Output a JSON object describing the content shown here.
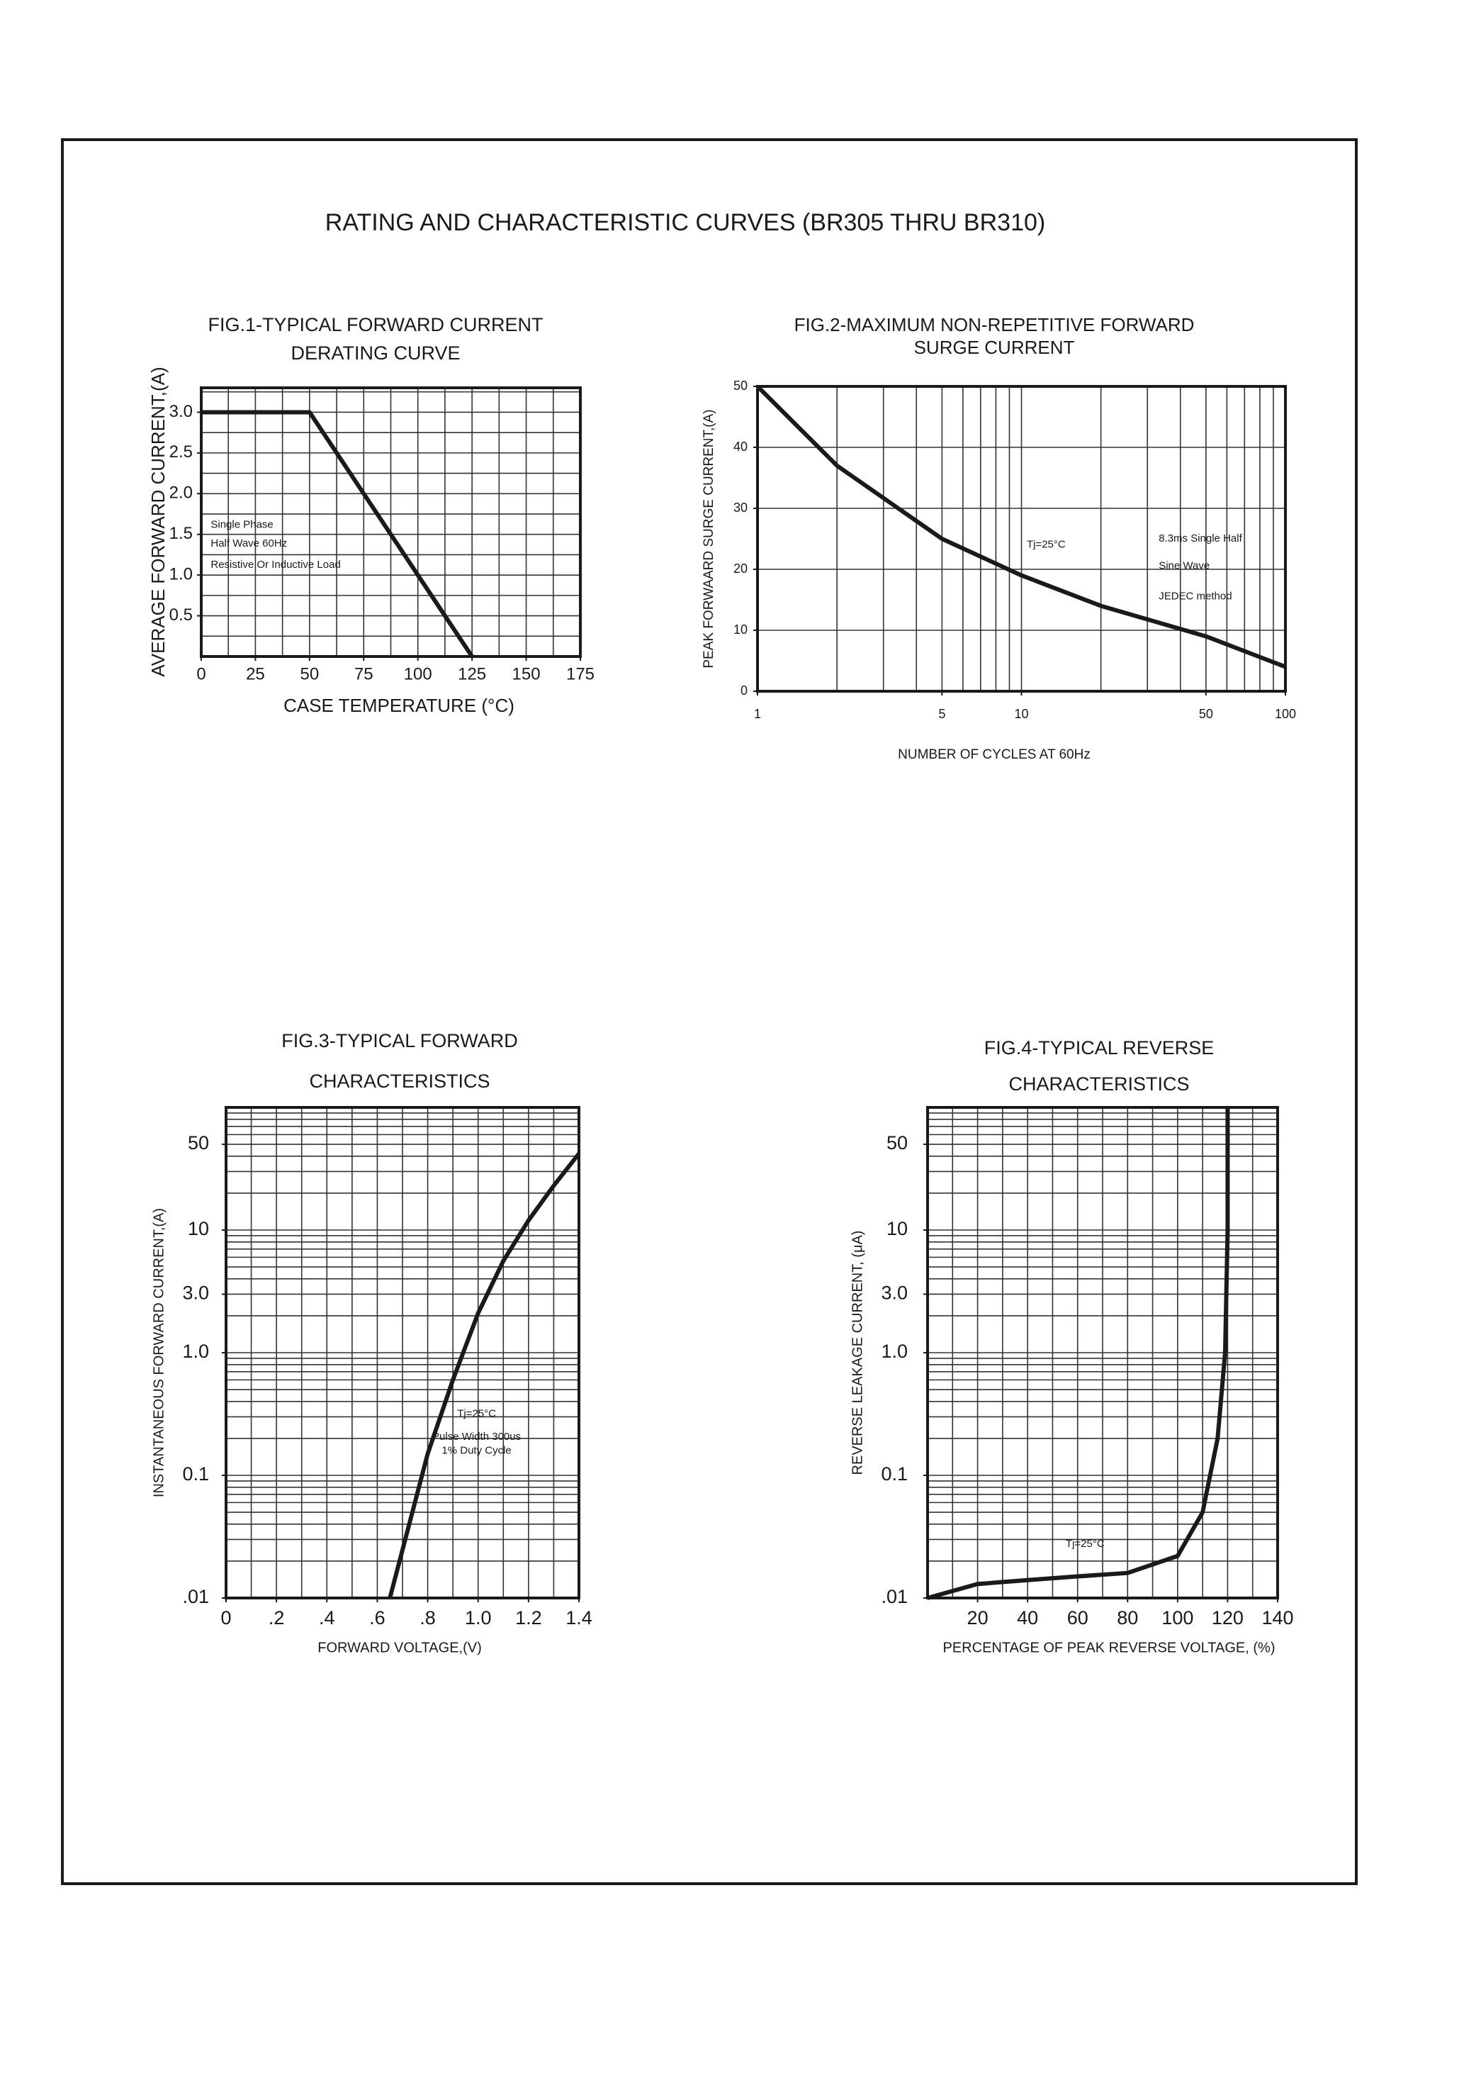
{
  "page_title": "RATING AND CHARACTERISTIC CURVES (BR305 THRU BR310)",
  "chart_data": [
    {
      "type": "line",
      "title": [
        "FIG.1-TYPICAL FORWARD CURRENT",
        "DERATING CURVE"
      ],
      "x_label": "CASE TEMPERATURE (°C)",
      "y_label": "AVERAGE FORWARD CURRENT,(A)",
      "xlim": [
        0,
        175
      ],
      "ylim": [
        0,
        3.3
      ],
      "xticks": [
        0,
        25,
        50,
        75,
        100,
        125,
        150,
        175
      ],
      "yticks": [
        0.5,
        {
          "value": 1,
          "label": "1.0"
        },
        1.5,
        {
          "value": 2,
          "label": "2.0"
        },
        2.5,
        {
          "value": 3,
          "label": "3.0"
        }
      ],
      "xgrid": [
        0,
        12.5,
        25,
        37.5,
        50,
        62.5,
        75,
        87.5,
        100,
        112.5,
        125,
        137.5,
        150,
        162.5,
        175
      ],
      "ygrid": [
        0,
        0.25,
        0.5,
        0.75,
        1,
        1.25,
        1.5,
        1.75,
        2,
        2.25,
        2.5,
        2.75,
        3,
        3.25
      ],
      "x": [
        0,
        50,
        125
      ],
      "values": [
        3,
        3,
        0
      ],
      "color": "#1a1a1a",
      "annotations": [
        "Single Phase",
        "Half Wave 60Hz",
        "Resistive Or Inductive Load"
      ]
    },
    {
      "type": "line",
      "title": [
        "FIG.2-MAXIMUM NON-REPETITIVE FORWARD",
        "SURGE CURRENT"
      ],
      "x_label": "NUMBER OF CYCLES AT 60Hz",
      "y_label": "PEAK FORWAARD SURGE CURRENT,(A)",
      "xlog": true,
      "xlim": [
        1,
        100
      ],
      "ylim": [
        0,
        50
      ],
      "xticks": [
        1,
        5,
        10,
        50,
        100
      ],
      "yticks": [
        0,
        10,
        20,
        30,
        40,
        50
      ],
      "xgrid": [
        1,
        2,
        3,
        4,
        5,
        6,
        7,
        8,
        9,
        10,
        20,
        30,
        40,
        50,
        60,
        70,
        80,
        90,
        100
      ],
      "x": [
        1,
        2,
        5,
        10,
        20,
        50,
        100
      ],
      "values": [
        50,
        37,
        25,
        19,
        14,
        9,
        4
      ],
      "color": "#1a1a1a",
      "annotations": [
        "Tj=25°C",
        "8.3ms Single Half",
        "Sine Wave",
        "JEDEC method"
      ]
    },
    {
      "type": "line",
      "title": [
        "FIG.3-TYPICAL FORWARD",
        "CHARACTERISTICS"
      ],
      "x_label": "FORWARD VOLTAGE,(V)",
      "y_label": "INSTANTANEOUS FORWARD CURRENT,(A)",
      "ylog": true,
      "xlim": [
        0,
        1.4
      ],
      "ylim": [
        0.01,
        100
      ],
      "xticks": [
        0,
        {
          "value": 0.2,
          "label": ".2"
        },
        {
          "value": 0.4,
          "label": ".4"
        },
        {
          "value": 0.6,
          "label": ".6"
        },
        {
          "value": 0.8,
          "label": ".8"
        },
        {
          "value": 1,
          "label": "1.0"
        },
        1.2,
        1.4
      ],
      "yticks": [
        {
          "value": 0.01,
          "label": ".01"
        },
        0.1,
        {
          "value": 1,
          "label": "1.0"
        },
        {
          "value": 3,
          "label": "3.0"
        },
        10,
        50
      ],
      "xgrid": [
        0,
        0.1,
        0.2,
        0.3,
        0.4,
        0.5,
        0.6,
        0.7,
        0.8,
        0.9,
        1,
        1.1,
        1.2,
        1.3,
        1.4
      ],
      "ygrid": [
        0.01,
        0.02,
        0.03,
        0.04,
        0.05,
        0.06,
        0.07,
        0.08,
        0.09,
        0.1,
        0.2,
        0.3,
        0.4,
        0.5,
        0.6,
        0.7,
        0.8,
        0.9,
        1,
        2,
        3,
        4,
        5,
        6,
        7,
        8,
        9,
        10,
        20,
        30,
        40,
        50,
        60,
        70,
        80,
        90,
        100
      ],
      "x": [
        0.65,
        0.8,
        0.9,
        1,
        1.1,
        1.2,
        1.3,
        1.4
      ],
      "values": [
        0.01,
        0.15,
        0.6,
        2.1,
        5.6,
        12,
        23,
        42
      ],
      "color": "#1a1a1a",
      "annotations": [
        "Tj=25°C",
        "Pulse Width 300us",
        "1% Duty Cycle"
      ]
    },
    {
      "type": "line",
      "title": [
        "FIG.4-TYPICAL REVERSE",
        "CHARACTERISTICS"
      ],
      "x_label": "PERCENTAGE OF PEAK REVERSE VOLTAGE, (%)",
      "y_label": "REVERSE LEAKAGE CURRENT, (μA)",
      "ylog": true,
      "xlim": [
        0,
        140
      ],
      "ylim": [
        0.01,
        100
      ],
      "xticks": [
        20,
        40,
        60,
        80,
        100,
        120,
        140
      ],
      "yticks": [
        {
          "value": 0.01,
          "label": ".01"
        },
        0.1,
        {
          "value": 1,
          "label": "1.0"
        },
        {
          "value": 3,
          "label": "3.0"
        },
        10,
        50
      ],
      "xgrid": [
        0,
        10,
        20,
        30,
        40,
        50,
        60,
        70,
        80,
        90,
        100,
        110,
        120,
        130,
        140
      ],
      "ygrid": [
        0.01,
        0.02,
        0.03,
        0.04,
        0.05,
        0.06,
        0.07,
        0.08,
        0.09,
        0.1,
        0.2,
        0.3,
        0.4,
        0.5,
        0.6,
        0.7,
        0.8,
        0.9,
        1,
        2,
        3,
        4,
        5,
        6,
        7,
        8,
        9,
        10,
        20,
        30,
        40,
        50,
        60,
        70,
        80,
        90,
        100
      ],
      "x": [
        0,
        20,
        40,
        60,
        80,
        100,
        110,
        116,
        119,
        120,
        120
      ],
      "values": [
        0.01,
        0.013,
        0.014,
        0.015,
        0.016,
        0.022,
        0.05,
        0.2,
        1,
        10,
        100
      ],
      "color": "#1a1a1a",
      "annotations": [
        "Tj=25°C"
      ]
    }
  ]
}
